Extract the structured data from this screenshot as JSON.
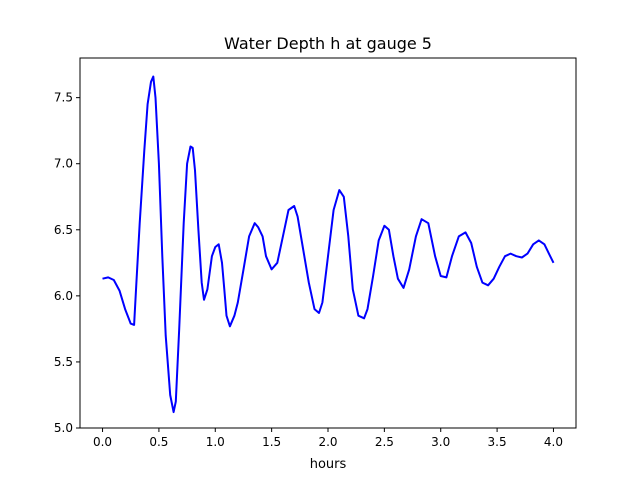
{
  "chart_data": {
    "type": "line",
    "title": "Water Depth h at gauge 5",
    "xlabel": "hours",
    "ylabel": "",
    "xlim": [
      -0.2,
      4.2
    ],
    "ylim": [
      5.0,
      7.8
    ],
    "xticks": [
      0.0,
      0.5,
      1.0,
      1.5,
      2.0,
      2.5,
      3.0,
      3.5,
      4.0
    ],
    "xtick_labels": [
      "0.0",
      "0.5",
      "1.0",
      "1.5",
      "2.0",
      "2.5",
      "3.0",
      "3.5",
      "4.0"
    ],
    "yticks": [
      5.0,
      5.5,
      6.0,
      6.5,
      7.0,
      7.5
    ],
    "ytick_labels": [
      "5.0",
      "5.5",
      "6.0",
      "6.5",
      "7.0",
      "7.5"
    ],
    "grid": false,
    "series": [
      {
        "color": "#0000ff",
        "x": [
          0.0,
          0.05,
          0.1,
          0.15,
          0.2,
          0.25,
          0.28,
          0.3,
          0.33,
          0.37,
          0.4,
          0.43,
          0.45,
          0.47,
          0.5,
          0.53,
          0.56,
          0.6,
          0.63,
          0.65,
          0.68,
          0.72,
          0.75,
          0.78,
          0.8,
          0.82,
          0.85,
          0.88,
          0.9,
          0.93,
          0.97,
          1.0,
          1.03,
          1.06,
          1.08,
          1.1,
          1.13,
          1.17,
          1.2,
          1.25,
          1.3,
          1.35,
          1.38,
          1.42,
          1.45,
          1.5,
          1.55,
          1.6,
          1.65,
          1.7,
          1.73,
          1.78,
          1.83,
          1.88,
          1.92,
          1.95,
          2.0,
          2.05,
          2.1,
          2.14,
          2.18,
          2.22,
          2.27,
          2.32,
          2.35,
          2.4,
          2.45,
          2.5,
          2.54,
          2.58,
          2.62,
          2.67,
          2.72,
          2.78,
          2.83,
          2.89,
          2.95,
          3.0,
          3.05,
          3.1,
          3.16,
          3.22,
          3.27,
          3.32,
          3.37,
          3.42,
          3.47,
          3.52,
          3.57,
          3.62,
          3.67,
          3.72,
          3.77,
          3.82,
          3.87,
          3.92,
          3.96,
          4.0
        ],
        "y": [
          6.13,
          6.14,
          6.12,
          6.04,
          5.9,
          5.79,
          5.78,
          6.1,
          6.55,
          7.1,
          7.45,
          7.62,
          7.66,
          7.5,
          7.0,
          6.3,
          5.7,
          5.25,
          5.12,
          5.2,
          5.75,
          6.55,
          7.0,
          7.13,
          7.12,
          6.95,
          6.5,
          6.1,
          5.97,
          6.05,
          6.3,
          6.37,
          6.39,
          6.25,
          6.05,
          5.85,
          5.77,
          5.85,
          5.95,
          6.2,
          6.45,
          6.55,
          6.52,
          6.45,
          6.3,
          6.2,
          6.25,
          6.45,
          6.65,
          6.68,
          6.6,
          6.35,
          6.1,
          5.9,
          5.87,
          5.95,
          6.3,
          6.65,
          6.8,
          6.75,
          6.45,
          6.05,
          5.85,
          5.83,
          5.9,
          6.15,
          6.42,
          6.53,
          6.5,
          6.3,
          6.13,
          6.06,
          6.2,
          6.45,
          6.58,
          6.55,
          6.3,
          6.15,
          6.14,
          6.3,
          6.45,
          6.48,
          6.4,
          6.22,
          6.1,
          6.08,
          6.13,
          6.22,
          6.3,
          6.32,
          6.3,
          6.29,
          6.32,
          6.39,
          6.42,
          6.39,
          6.32,
          6.25
        ]
      }
    ]
  }
}
